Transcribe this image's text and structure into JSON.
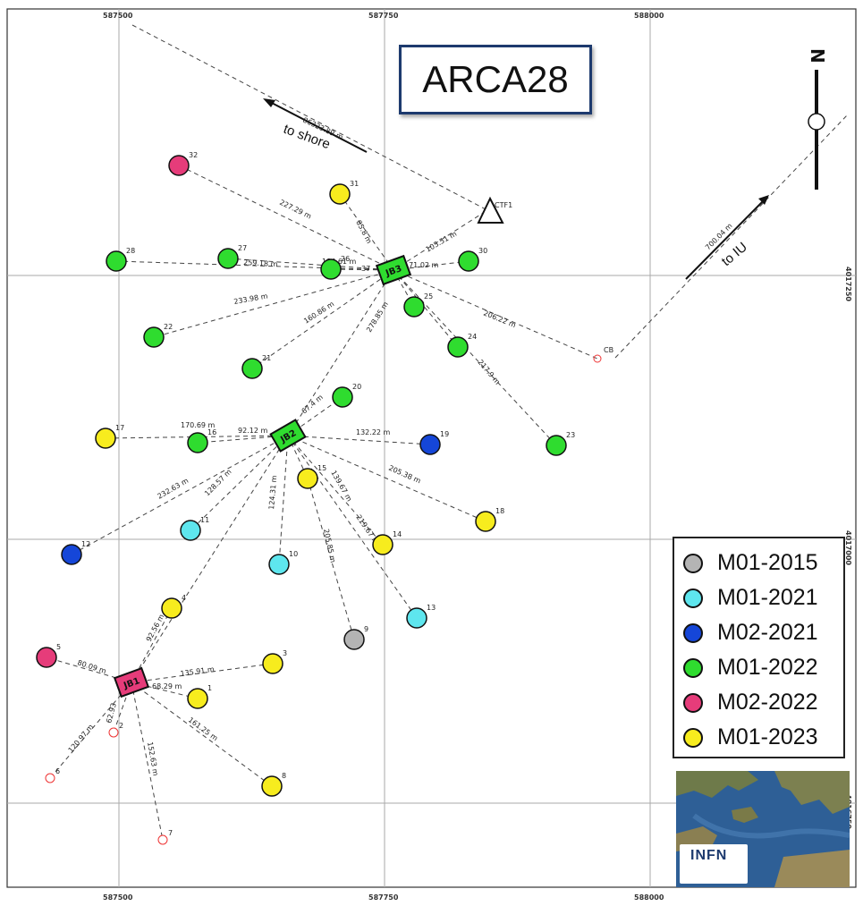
{
  "title": "ARCA28",
  "axes": {
    "x_ticks": [
      "587500",
      "587750",
      "588000"
    ],
    "y_ticks": [
      "4017250",
      "4017000",
      "4016750"
    ]
  },
  "arrows": {
    "shore_label": "to shore",
    "shore_distance": "86323.89 m",
    "iu_label": "to IU",
    "iu_distance": "700.04 m"
  },
  "compass": {
    "letter": "N"
  },
  "legend": {
    "entries": [
      {
        "label": "M01-2015",
        "color": "#b4b4b4"
      },
      {
        "label": "M01-2021",
        "color": "#5ee6ee"
      },
      {
        "label": "M02-2021",
        "color": "#1546d8"
      },
      {
        "label": "M01-2022",
        "color": "#2fdc2f"
      },
      {
        "label": "M02-2022",
        "color": "#e63c7a"
      },
      {
        "label": "M01-2023",
        "color": "#f7ec1e"
      }
    ]
  },
  "logo": {
    "text": "INFN"
  },
  "junction_boxes": [
    {
      "id": "JB3",
      "color": "#2fdc2f"
    },
    {
      "id": "JB2",
      "color": "#2fdc2f"
    },
    {
      "id": "JB1",
      "color": "#e63c7a"
    }
  ],
  "ctf": {
    "label": "CTF1"
  },
  "cb": {
    "label": "CB"
  },
  "units": [
    {
      "id": "32",
      "type": "M02-2022"
    },
    {
      "id": "31",
      "type": "M01-2023"
    },
    {
      "id": "28",
      "type": "M01-2022"
    },
    {
      "id": "27",
      "type": "M01-2022"
    },
    {
      "id": "26",
      "type": "M01-2022"
    },
    {
      "id": "30",
      "type": "M01-2022"
    },
    {
      "id": "25",
      "type": "M01-2022"
    },
    {
      "id": "22",
      "type": "M01-2022"
    },
    {
      "id": "21",
      "type": "M01-2022"
    },
    {
      "id": "24",
      "type": "M01-2022"
    },
    {
      "id": "20",
      "type": "M01-2022"
    },
    {
      "id": "17",
      "type": "M01-2023"
    },
    {
      "id": "16",
      "type": "M01-2022"
    },
    {
      "id": "19",
      "type": "M02-2021"
    },
    {
      "id": "23",
      "type": "M01-2022"
    },
    {
      "id": "15",
      "type": "M01-2023"
    },
    {
      "id": "18",
      "type": "M01-2023"
    },
    {
      "id": "11",
      "type": "M01-2021"
    },
    {
      "id": "12",
      "type": "M02-2021"
    },
    {
      "id": "14",
      "type": "M01-2023"
    },
    {
      "id": "10",
      "type": "M01-2021"
    },
    {
      "id": "4",
      "type": "M01-2023"
    },
    {
      "id": "13",
      "type": "M01-2021"
    },
    {
      "id": "9",
      "type": "M01-2015"
    },
    {
      "id": "5",
      "type": "M02-2022"
    },
    {
      "id": "3",
      "type": "M01-2023"
    },
    {
      "id": "1",
      "type": "M01-2023"
    },
    {
      "id": "8",
      "type": "M01-2023"
    }
  ],
  "empty_sites": [
    "2",
    "6",
    "7"
  ],
  "segment_labels": [
    "227.29 m",
    "85.8 m",
    "103.51 m",
    "259.18 m",
    "184.61 m",
    "37",
    "171.02 m",
    "233.98 m",
    "160.86 m",
    "278.85 m",
    "206.22 m",
    "217.9 m",
    "67.4 m",
    "170.69 m",
    "92.12 m",
    "132.22 m",
    "232.63 m",
    "128.57 m",
    "124.31 m",
    "139.67 m",
    "205.38 m",
    "219.67 m",
    "205.85 m",
    "92.56 m",
    "80.09 m",
    "135.91 m",
    "68.29 m",
    "120.97 m",
    "62.93",
    "152.63 m",
    "161.25 m"
  ]
}
